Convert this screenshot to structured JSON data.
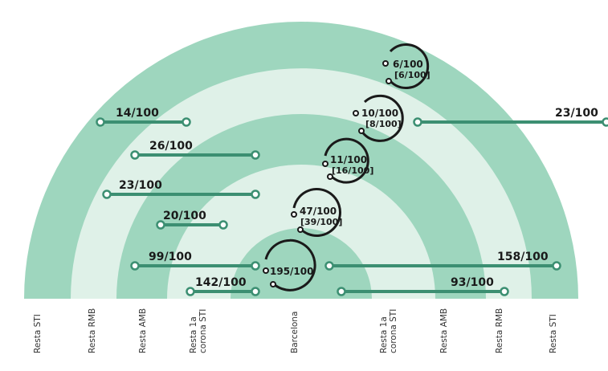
{
  "colors": {
    "band_dark": "#9ed6be",
    "band_light": "#dff1e8",
    "line": "#3c8f72",
    "circle": "#1a1a1a"
  },
  "zones": [
    "Resta STI",
    "Resta RMB",
    "Resta AMB",
    "Resta 1a corona STI",
    "Barcelona",
    "Resta 1a corona STI",
    "Resta AMB",
    "Resta RMB",
    "Resta STI"
  ],
  "left_ratios": [
    "14/100",
    "26/100",
    "23/100",
    "20/100",
    "99/100",
    "142/100"
  ],
  "right_ratios": [
    "23/100",
    "158/100",
    "93/100"
  ],
  "circle_ratios": [
    {
      "main": "6/100",
      "sub": "[6/100]"
    },
    {
      "main": "10/100",
      "sub": "[8/100]"
    },
    {
      "main": "11/100",
      "sub": "[16/100]"
    },
    {
      "main": "47/100",
      "sub": "[39/100]"
    },
    {
      "main": "195/100",
      "sub": ""
    }
  ]
}
